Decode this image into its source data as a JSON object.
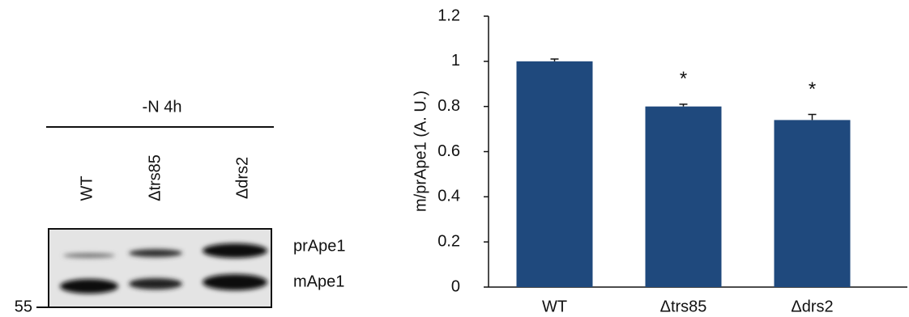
{
  "blot": {
    "condition": "-N 4h",
    "lanes": [
      "WT",
      "Δtrs85",
      "Δdrs2"
    ],
    "bands": [
      "prApe1",
      "mApe1"
    ],
    "marker": "55"
  },
  "chart_data": {
    "type": "bar",
    "ylabel": "m/prApe1 (A. U.)",
    "categories": [
      "WT",
      "Δtrs85",
      "Δdrs2"
    ],
    "values": [
      1.0,
      0.8,
      0.74
    ],
    "errors": [
      0.01,
      0.01,
      0.025
    ],
    "color": "#1f497d",
    "ylim": [
      0,
      1.2
    ],
    "yticks": [
      0,
      0.2,
      0.4,
      0.6,
      0.8,
      1,
      1.2
    ],
    "annotations": [
      {
        "text": "*",
        "category": 1
      },
      {
        "text": "*",
        "category": 2
      }
    ]
  }
}
